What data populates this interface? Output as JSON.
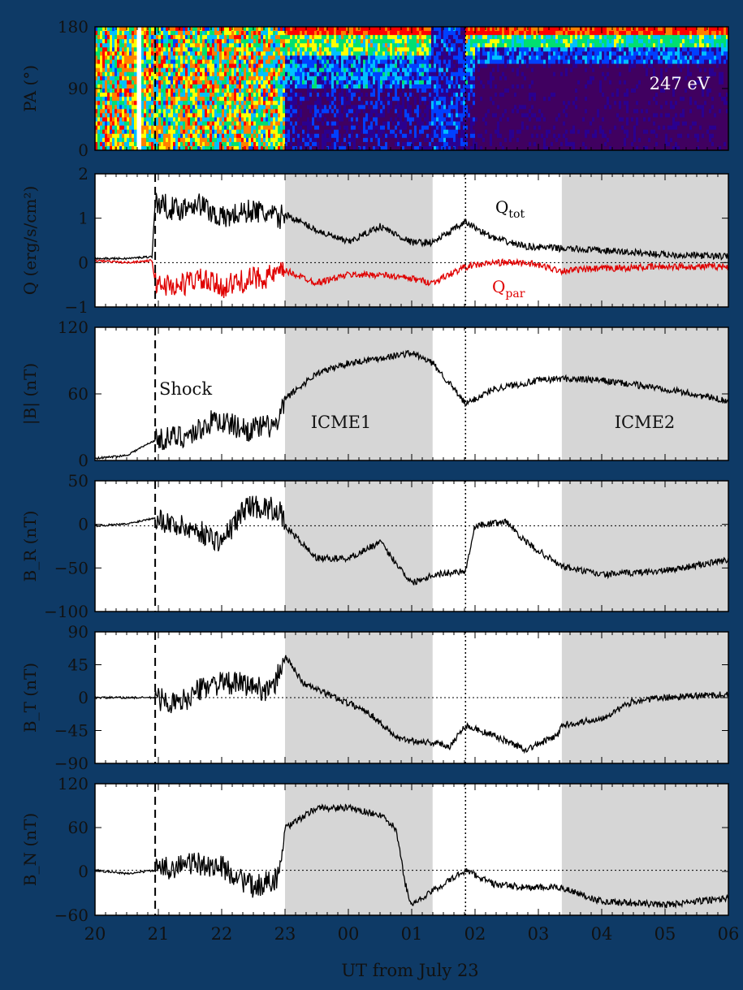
{
  "figure": {
    "background": "#0e3a66",
    "panel_background": "#ffffff",
    "shade_color": "#d6d6d6",
    "xlabel": "UT from July 23",
    "x_ticks": [
      "20",
      "21",
      "22",
      "23",
      "00",
      "01",
      "02",
      "03",
      "04",
      "05",
      "06"
    ],
    "x_range_hours": [
      20,
      30
    ],
    "shock_hour": 20.95,
    "discontinuity_hour": 25.85,
    "icme_intervals": [
      {
        "name": "ICME1",
        "start_hour": 23.0,
        "end_hour": 25.33
      },
      {
        "name": "ICME2",
        "start_hour": 27.37,
        "end_hour": 30.0
      }
    ],
    "shock_label": "Shock",
    "icme1_label": "ICME1",
    "icme2_label": "ICME2"
  },
  "chart_data": [
    {
      "type": "heatmap",
      "ylabel": "PA (°)",
      "ylim": [
        0,
        180
      ],
      "yticks": [
        "180",
        "90",
        "0"
      ],
      "annotation": "247 eV",
      "colormap": [
        "#400060",
        "#2a0090",
        "#0040ff",
        "#00c0ff",
        "#00e070",
        "#ffff00",
        "#ff8000",
        "#ff0000"
      ]
    },
    {
      "type": "line",
      "ylabel": "Q (erg/s/cm²)",
      "ylim": [
        -1.1,
        2.2
      ],
      "yticks": [
        "2",
        "1",
        "0",
        "−1"
      ],
      "zero_line": true,
      "series": [
        {
          "name": "Q_tot",
          "label_main": "Q",
          "label_sub": "tot",
          "color": "#000000",
          "points": [
            [
              20.0,
              0.1
            ],
            [
              20.5,
              0.1
            ],
            [
              20.9,
              0.15
            ],
            [
              20.95,
              1.5
            ],
            [
              21.3,
              1.3
            ],
            [
              21.6,
              1.5
            ],
            [
              22.0,
              1.1
            ],
            [
              22.5,
              1.3
            ],
            [
              22.9,
              1.1
            ],
            [
              23.0,
              1.2
            ],
            [
              23.5,
              0.8
            ],
            [
              24.0,
              0.5
            ],
            [
              24.5,
              0.9
            ],
            [
              25.0,
              0.5
            ],
            [
              25.33,
              0.5
            ],
            [
              25.85,
              1.0
            ],
            [
              26.3,
              0.6
            ],
            [
              26.8,
              0.4
            ],
            [
              27.37,
              0.35
            ],
            [
              28.0,
              0.3
            ],
            [
              29.0,
              0.2
            ],
            [
              30.0,
              0.15
            ]
          ]
        },
        {
          "name": "Q_par",
          "label_main": "Q",
          "label_sub": "par",
          "color": "#e00000",
          "points": [
            [
              20.0,
              0.05
            ],
            [
              20.5,
              0.0
            ],
            [
              20.9,
              0.05
            ],
            [
              20.95,
              -0.5
            ],
            [
              21.3,
              -0.6
            ],
            [
              21.6,
              -0.4
            ],
            [
              22.0,
              -0.6
            ],
            [
              22.5,
              -0.4
            ],
            [
              22.9,
              -0.3
            ],
            [
              23.0,
              -0.2
            ],
            [
              23.5,
              -0.5
            ],
            [
              24.0,
              -0.3
            ],
            [
              24.5,
              -0.3
            ],
            [
              25.0,
              -0.4
            ],
            [
              25.33,
              -0.5
            ],
            [
              25.85,
              -0.1
            ],
            [
              26.3,
              0.0
            ],
            [
              26.8,
              0.0
            ],
            [
              27.37,
              -0.2
            ],
            [
              28.0,
              -0.15
            ],
            [
              29.0,
              -0.1
            ],
            [
              30.0,
              -0.1
            ]
          ]
        }
      ]
    },
    {
      "type": "line",
      "ylabel": "|B| (nT)",
      "ylim": [
        0,
        130
      ],
      "yticks": [
        "120",
        "60",
        "0"
      ],
      "zero_line": false,
      "series": [
        {
          "name": "",
          "color": "#000000",
          "points": [
            [
              20.0,
              2
            ],
            [
              20.5,
              5
            ],
            [
              20.95,
              20
            ],
            [
              21.5,
              25
            ],
            [
              21.9,
              40
            ],
            [
              22.4,
              30
            ],
            [
              22.9,
              35
            ],
            [
              23.0,
              60
            ],
            [
              23.5,
              85
            ],
            [
              24.0,
              95
            ],
            [
              24.5,
              100
            ],
            [
              25.0,
              105
            ],
            [
              25.33,
              95
            ],
            [
              25.6,
              75
            ],
            [
              25.85,
              55
            ],
            [
              26.3,
              70
            ],
            [
              27.0,
              78
            ],
            [
              27.37,
              80
            ],
            [
              28.0,
              78
            ],
            [
              29.0,
              70
            ],
            [
              30.0,
              58
            ]
          ]
        }
      ]
    },
    {
      "type": "line",
      "ylabel": "B_R (nT)",
      "ylim": [
        -105,
        55
      ],
      "yticks": [
        "50",
        "0",
        "−50",
        "−100"
      ],
      "zero_line": true,
      "series": [
        {
          "name": "",
          "color": "#000000",
          "points": [
            [
              20.0,
              0
            ],
            [
              20.5,
              2
            ],
            [
              20.95,
              10
            ],
            [
              21.3,
              0
            ],
            [
              21.6,
              -5
            ],
            [
              22.0,
              -20
            ],
            [
              22.4,
              25
            ],
            [
              22.9,
              20
            ],
            [
              23.0,
              0
            ],
            [
              23.5,
              -40
            ],
            [
              24.0,
              -40
            ],
            [
              24.5,
              -20
            ],
            [
              25.0,
              -70
            ],
            [
              25.33,
              -60
            ],
            [
              25.85,
              -55
            ],
            [
              26.0,
              0
            ],
            [
              26.5,
              5
            ],
            [
              26.8,
              -20
            ],
            [
              27.37,
              -50
            ],
            [
              28.0,
              -60
            ],
            [
              29.0,
              -55
            ],
            [
              30.0,
              -42
            ]
          ]
        }
      ]
    },
    {
      "type": "line",
      "ylabel": "B_T (nT)",
      "ylim": [
        -95,
        95
      ],
      "yticks": [
        "90",
        "45",
        "0",
        "−45",
        "−90"
      ],
      "zero_line": true,
      "series": [
        {
          "name": "",
          "color": "#000000",
          "points": [
            [
              20.0,
              0
            ],
            [
              20.5,
              0
            ],
            [
              20.95,
              0
            ],
            [
              21.3,
              -10
            ],
            [
              21.8,
              20
            ],
            [
              22.3,
              20
            ],
            [
              22.8,
              10
            ],
            [
              23.0,
              60
            ],
            [
              23.3,
              20
            ],
            [
              23.8,
              0
            ],
            [
              24.3,
              -20
            ],
            [
              24.8,
              -60
            ],
            [
              25.33,
              -65
            ],
            [
              25.6,
              -70
            ],
            [
              25.85,
              -40
            ],
            [
              26.3,
              -55
            ],
            [
              26.8,
              -75
            ],
            [
              27.3,
              -55
            ],
            [
              27.37,
              -40
            ],
            [
              28.0,
              -30
            ],
            [
              28.5,
              -5
            ],
            [
              29.0,
              0
            ],
            [
              30.0,
              5
            ]
          ]
        }
      ]
    },
    {
      "type": "line",
      "ylabel": "B_N (nT)",
      "ylim": [
        -65,
        125
      ],
      "yticks": [
        "120",
        "60",
        "0",
        "−60"
      ],
      "zero_line": true,
      "series": [
        {
          "name": "",
          "color": "#000000",
          "points": [
            [
              20.0,
              0
            ],
            [
              20.5,
              -5
            ],
            [
              20.95,
              0
            ],
            [
              21.5,
              10
            ],
            [
              22.0,
              5
            ],
            [
              22.5,
              -25
            ],
            [
              22.9,
              -10
            ],
            [
              23.0,
              60
            ],
            [
              23.5,
              90
            ],
            [
              24.0,
              90
            ],
            [
              24.5,
              80
            ],
            [
              24.75,
              60
            ],
            [
              24.9,
              -20
            ],
            [
              25.0,
              -50
            ],
            [
              25.33,
              -30
            ],
            [
              25.85,
              0
            ],
            [
              26.3,
              -20
            ],
            [
              26.8,
              -25
            ],
            [
              27.37,
              -25
            ],
            [
              28.0,
              -45
            ],
            [
              29.0,
              -50
            ],
            [
              30.0,
              -40
            ]
          ]
        }
      ]
    }
  ]
}
